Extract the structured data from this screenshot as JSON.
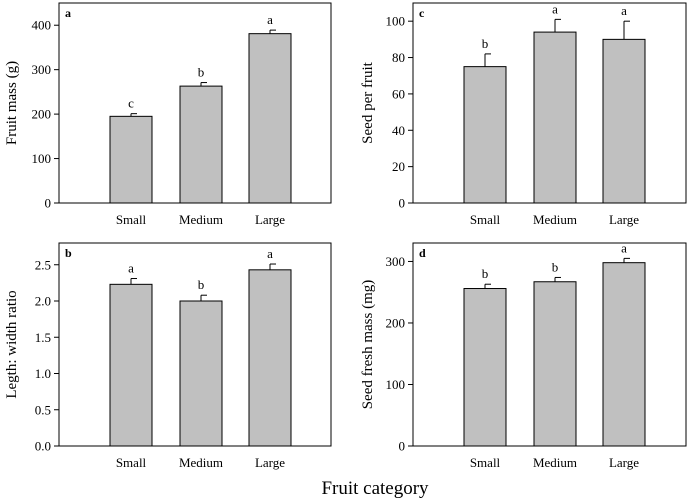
{
  "figure": {
    "x_title": "Fruit category"
  },
  "chart_data": [
    {
      "type": "bar",
      "panel": "a",
      "categories": [
        "Small",
        "Medium",
        "Large"
      ],
      "values": [
        195,
        263,
        381
      ],
      "errors": [
        6,
        8,
        8
      ],
      "significance": [
        "c",
        "b",
        "a"
      ],
      "ylabel": "Fruit mass (g)",
      "ylim": [
        0,
        450
      ],
      "yticks": [
        0,
        100,
        200,
        300,
        400
      ],
      "ytick_labels": [
        "0",
        "100",
        "200",
        "300",
        "400"
      ],
      "bar_color": "#c0c0c0"
    },
    {
      "type": "bar",
      "panel": "c",
      "categories": [
        "Small",
        "Medium",
        "Large"
      ],
      "values": [
        75,
        94,
        90
      ],
      "errors": [
        7,
        7,
        10
      ],
      "significance": [
        "b",
        "a",
        "a"
      ],
      "ylabel": "Seed per fruit",
      "ylim": [
        0,
        110
      ],
      "yticks": [
        0,
        20,
        40,
        60,
        80,
        100
      ],
      "ytick_labels": [
        "0",
        "20",
        "40",
        "60",
        "80",
        "100"
      ],
      "bar_color": "#c0c0c0"
    },
    {
      "type": "bar",
      "panel": "b",
      "categories": [
        "Small",
        "Medium",
        "Large"
      ],
      "values": [
        2.23,
        2.0,
        2.43
      ],
      "errors": [
        0.08,
        0.08,
        0.08
      ],
      "significance": [
        "a",
        "b",
        "a"
      ],
      "ylabel": "Legth: width ratio",
      "ylim": [
        0,
        2.8
      ],
      "yticks": [
        0,
        0.5,
        1.0,
        1.5,
        2.0,
        2.5
      ],
      "ytick_labels": [
        "0.0",
        "0.5",
        "1.0",
        "1.5",
        "2.0",
        "2.5"
      ],
      "bar_color": "#c0c0c0"
    },
    {
      "type": "bar",
      "panel": "d",
      "categories": [
        "Small",
        "Medium",
        "Large"
      ],
      "values": [
        256,
        267,
        298
      ],
      "errors": [
        7,
        7,
        7
      ],
      "significance": [
        "b",
        "b",
        "a"
      ],
      "ylabel": "Seed fresh mass (mg)",
      "ylim": [
        0,
        330
      ],
      "yticks": [
        0,
        100,
        200,
        300
      ],
      "ytick_labels": [
        "0",
        "100",
        "200",
        "300"
      ],
      "bar_color": "#c0c0c0"
    }
  ]
}
